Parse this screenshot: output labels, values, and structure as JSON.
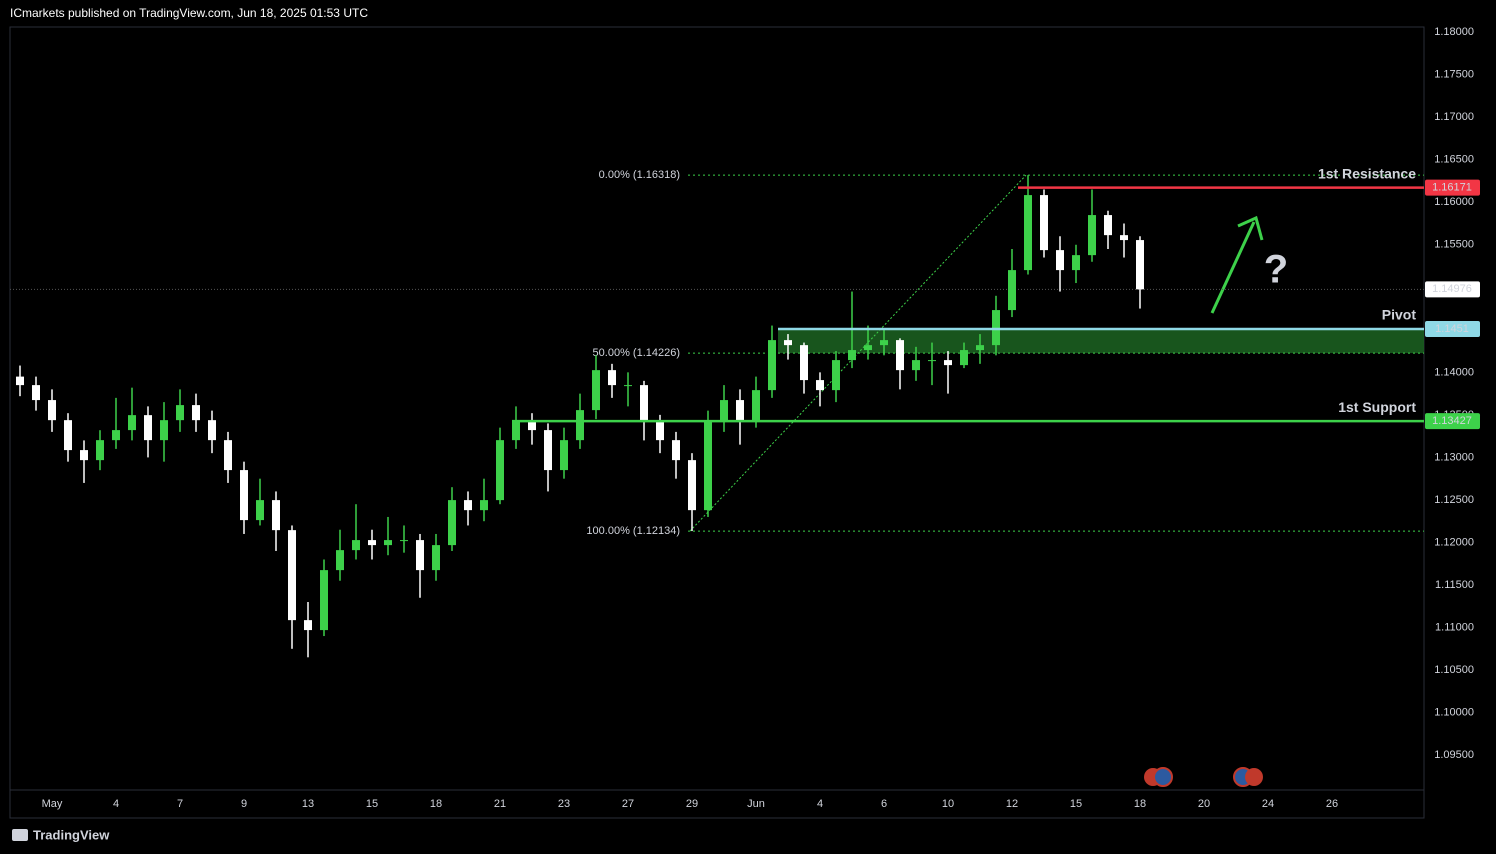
{
  "header": "ICmarkets published on TradingView.com, Jun 18, 2025 01:53 UTC",
  "footer": "TradingView",
  "chart_data": {
    "type": "candlestick",
    "up_color": "#3dd14a",
    "down_color": "#ffffff",
    "categories": [
      null,
      null,
      "May",
      null,
      null,
      null,
      "4",
      null,
      null,
      null,
      "7",
      null,
      null,
      null,
      "9",
      null,
      null,
      null,
      "13",
      null,
      null,
      null,
      "15",
      null,
      null,
      null,
      "18",
      null,
      null,
      null,
      "21",
      null,
      null,
      null,
      "23",
      null,
      null,
      null,
      "27",
      null,
      null,
      null,
      "29",
      null,
      null,
      null,
      "Jun",
      null,
      null,
      null,
      "4",
      null,
      null,
      null,
      "6",
      null,
      null,
      null,
      "10",
      null,
      null,
      null,
      "12",
      null,
      null,
      null,
      "15",
      null,
      null,
      null,
      "18",
      null,
      null,
      null,
      "20",
      null,
      null,
      null,
      "24",
      null,
      null,
      null,
      "26",
      null
    ],
    "open": [
      1.1395,
      1.1385,
      1.13674,
      1.13438,
      1.13086,
      1.12968,
      1.13203,
      1.13321,
      1.13497,
      1.13203,
      1.13438,
      1.13615,
      1.13438,
      1.13203,
      1.12851,
      1.12263,
      1.12498,
      1.12145,
      1.11087,
      1.1097,
      1.11675,
      1.1191,
      1.12028,
      1.11969,
      1.12028,
      1.12028,
      1.11675,
      1.11969,
      1.12498,
      1.1238,
      1.12498,
      1.13203,
      1.13438,
      1.13321,
      1.12851,
      1.13203,
      1.13556,
      1.14026,
      1.1385,
      1.1385,
      1.13438,
      1.13203,
      1.12968,
      1.1238,
      1.13438,
      1.13674,
      1.13438,
      1.13791,
      1.14379,
      1.1432,
      1.13909,
      1.13791,
      1.14144,
      1.14262,
      1.1432,
      1.14379,
      1.14026,
      1.14144,
      1.14144,
      1.14085,
      1.14262,
      1.1432,
      1.14732,
      1.15202,
      1.16084,
      1.15437,
      1.15202,
      1.15378,
      1.15849,
      1.15613,
      1.15555,
      null,
      null,
      null,
      null,
      null,
      null,
      null,
      null,
      null,
      null,
      null,
      null,
      null
    ],
    "high": [
      1.1408,
      1.1395,
      1.138,
      1.1352,
      1.132,
      1.1332,
      1.137,
      1.1382,
      1.136,
      1.1365,
      1.138,
      1.1375,
      1.1355,
      1.133,
      1.1295,
      1.1275,
      1.126,
      1.122,
      1.113,
      1.118,
      1.1215,
      1.1245,
      1.1215,
      1.123,
      1.122,
      1.121,
      1.121,
      1.1265,
      1.126,
      1.1275,
      1.1335,
      1.136,
      1.1352,
      1.134,
      1.1335,
      1.1375,
      1.142,
      1.141,
      1.14,
      1.139,
      1.135,
      1.133,
      1.1305,
      1.1355,
      1.1385,
      1.138,
      1.1395,
      1.1455,
      1.1445,
      1.1435,
      1.14,
      1.1425,
      1.1495,
      1.1455,
      1.145,
      1.144,
      1.143,
      1.1435,
      1.1425,
      1.1435,
      1.1445,
      1.149,
      1.1545,
      1.16318,
      1.1615,
      1.156,
      1.155,
      1.1615,
      1.159,
      1.1575,
      1.156,
      null,
      null,
      null,
      null,
      null,
      null,
      null,
      null,
      null,
      null,
      null,
      null,
      null
    ],
    "low": [
      1.1372,
      1.1355,
      1.133,
      1.1295,
      1.127,
      1.1285,
      1.131,
      1.132,
      1.13,
      1.1295,
      1.133,
      1.133,
      1.1305,
      1.127,
      1.121,
      1.122,
      1.119,
      1.1075,
      1.1065,
      1.109,
      1.1155,
      1.118,
      1.118,
      1.1185,
      1.1188,
      1.1135,
      1.1155,
      1.119,
      1.122,
      1.1225,
      1.1245,
      1.131,
      1.1315,
      1.126,
      1.1275,
      1.131,
      1.1345,
      1.137,
      1.136,
      1.132,
      1.1305,
      1.1275,
      1.12134,
      1.123,
      1.133,
      1.1315,
      1.1335,
      1.137,
      1.1415,
      1.1375,
      1.136,
      1.1365,
      1.1405,
      1.1415,
      1.142,
      1.138,
      1.139,
      1.1385,
      1.1375,
      1.1405,
      1.141,
      1.142,
      1.1465,
      1.1515,
      1.1535,
      1.1495,
      1.1505,
      1.153,
      1.1545,
      1.1535,
      1.1475,
      null,
      null,
      null,
      null,
      null,
      null,
      null,
      null,
      null,
      null,
      null,
      null,
      null
    ],
    "close": [
      1.1385,
      1.13674,
      1.13438,
      1.13086,
      1.12968,
      1.13203,
      1.13321,
      1.13497,
      1.13203,
      1.13438,
      1.13615,
      1.13438,
      1.13203,
      1.12851,
      1.12263,
      1.12498,
      1.12145,
      1.11087,
      1.1097,
      1.11675,
      1.1191,
      1.12028,
      1.11969,
      1.12028,
      1.12028,
      1.11675,
      1.11969,
      1.12498,
      1.1238,
      1.12498,
      1.13203,
      1.13438,
      1.13321,
      1.12851,
      1.13203,
      1.13556,
      1.14026,
      1.1385,
      1.1385,
      1.13438,
      1.13203,
      1.12968,
      1.1238,
      1.13438,
      1.13674,
      1.13438,
      1.13791,
      1.14379,
      1.1432,
      1.13909,
      1.13791,
      1.14144,
      1.14262,
      1.1432,
      1.14379,
      1.14026,
      1.14144,
      1.14144,
      1.14085,
      1.14262,
      1.1432,
      1.14732,
      1.15202,
      1.16084,
      1.15437,
      1.15202,
      1.15378,
      1.15849,
      1.15613,
      1.15555,
      1.14976,
      null,
      null,
      null,
      null,
      null,
      null,
      null,
      null,
      null,
      null,
      null,
      null,
      null
    ],
    "ylim": [
      1.0909,
      1.1806
    ],
    "yticks": [
      {
        "value": 1.18,
        "label": "1.18000"
      },
      {
        "value": 1.175,
        "label": "1.17500"
      },
      {
        "value": 1.17,
        "label": "1.17000"
      },
      {
        "value": 1.165,
        "label": "1.16500"
      },
      {
        "value": 1.16,
        "label": "1.16000"
      },
      {
        "value": 1.155,
        "label": "1.15500"
      },
      {
        "value": 1.15,
        "label": "1.15000"
      },
      {
        "value": 1.145,
        "label": "1.14500"
      },
      {
        "value": 1.14,
        "label": "1.14000"
      },
      {
        "value": 1.135,
        "label": "1.13500"
      },
      {
        "value": 1.13,
        "label": "1.13000"
      },
      {
        "value": 1.125,
        "label": "1.12500"
      },
      {
        "value": 1.12,
        "label": "1.12000"
      },
      {
        "value": 1.115,
        "label": "1.11500"
      },
      {
        "value": 1.11,
        "label": "1.11000"
      },
      {
        "value": 1.105,
        "label": "1.10500"
      },
      {
        "value": 1.1,
        "label": "1.10000"
      },
      {
        "value": 1.095,
        "label": "1.09500"
      }
    ],
    "grid": false,
    "last_price": 1.14976,
    "levels": [
      {
        "name": "1st Resistance",
        "value": 1.16171,
        "color": "#f23645"
      },
      {
        "name": "Pivot",
        "value": 1.1451,
        "color": "#8fd9e6"
      },
      {
        "name": "1st Support",
        "value": 1.13427,
        "color": "#3dd14a"
      }
    ],
    "fib_levels": [
      {
        "label": "0.00% (1.16318)",
        "value": 1.16318
      },
      {
        "label": "50.00% (1.14226)",
        "value": 1.14226
      },
      {
        "label": "100.00% (1.12134)",
        "value": 1.12134
      }
    ],
    "fib_color": "#3dd14a",
    "annotation": "?"
  }
}
